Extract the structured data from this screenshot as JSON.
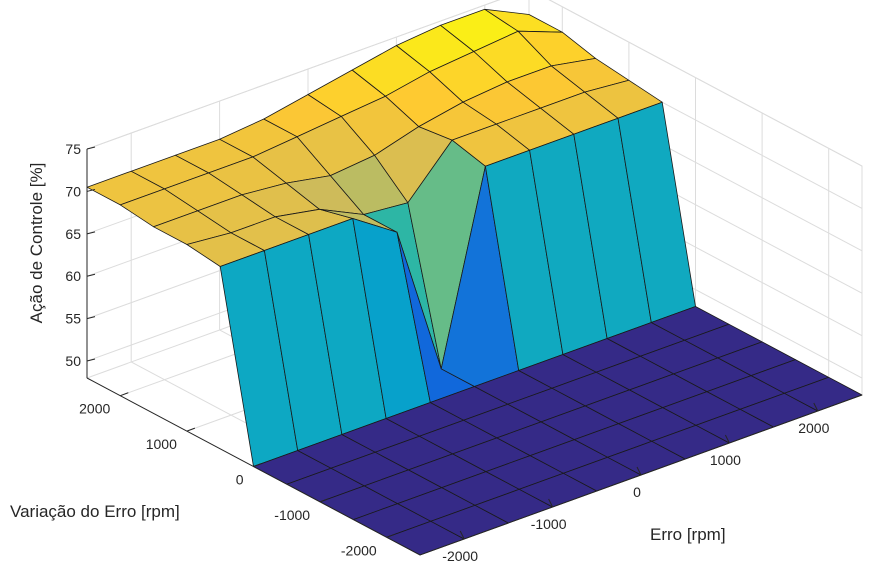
{
  "chart_data": {
    "type": "surface",
    "title": "",
    "xlabel": "Erro [rpm]",
    "ylabel": "Variação do Erro [rpm]",
    "zlabel": "Ação de Controle [%]",
    "xlim": [
      -2500,
      2500
    ],
    "ylim": [
      -2500,
      2500
    ],
    "zlim": [
      48,
      75
    ],
    "x_ticks": [
      -2000,
      -1000,
      0,
      1000,
      2000
    ],
    "x_tick_labels": [
      "-2000",
      "-1000",
      "0",
      "1000",
      "2000"
    ],
    "y_ticks": [
      -2000,
      -1000,
      0,
      1000,
      2000
    ],
    "y_tick_labels": [
      "-2000",
      "-1000",
      "0",
      "1000",
      "2000"
    ],
    "z_ticks": [
      50,
      55,
      60,
      65,
      70,
      75
    ],
    "z_tick_labels": [
      "50",
      "55",
      "60",
      "65",
      "70",
      "75"
    ],
    "grid": true,
    "colormap": "parula",
    "colormap_stops": [
      "#352a87",
      "#0f5cdd",
      "#1481d6",
      "#06a4ca",
      "#2eb7a4",
      "#87bf77",
      "#d1bb59",
      "#fec832",
      "#f9fb0e"
    ],
    "x": [
      -2500,
      -2000,
      -1500,
      -1000,
      -500,
      0,
      500,
      1000,
      1500,
      2000,
      2500
    ],
    "y": [
      -2500,
      -2000,
      -1500,
      -1000,
      -500,
      0,
      500,
      1000,
      1500,
      2000,
      2500
    ],
    "z": [
      [
        48,
        48,
        48,
        48,
        48,
        48,
        48,
        48,
        48,
        48,
        48
      ],
      [
        48,
        48,
        48,
        48,
        48,
        48,
        48,
        48,
        48,
        48,
        48
      ],
      [
        48,
        48,
        48,
        48,
        48,
        48,
        48,
        48,
        48,
        48,
        48
      ],
      [
        48,
        48,
        48,
        48,
        48,
        48,
        48,
        48,
        48,
        48,
        48
      ],
      [
        48,
        48,
        48,
        48,
        48,
        48,
        48,
        48,
        48,
        48,
        48
      ],
      [
        48,
        48,
        48,
        48,
        48,
        48,
        48,
        48,
        48,
        48,
        48
      ],
      [
        69.5,
        69.5,
        69.5,
        69.5,
        66,
        48,
        70,
        70,
        70,
        70,
        70
      ],
      [
        70,
        69.5,
        69.5,
        68.5,
        66,
        65.5,
        71,
        71,
        71,
        71,
        70.5
      ],
      [
        70,
        70,
        70,
        69.5,
        68.5,
        69,
        70.5,
        71.5,
        72,
        72,
        71
      ],
      [
        70.5,
        70.5,
        70.5,
        70.5,
        71,
        71.5,
        72,
        73,
        73.5,
        74,
        72
      ],
      [
        70.5,
        70.5,
        70.5,
        70.5,
        71,
        72,
        73,
        74,
        74.5,
        74.5,
        72
      ]
    ]
  }
}
